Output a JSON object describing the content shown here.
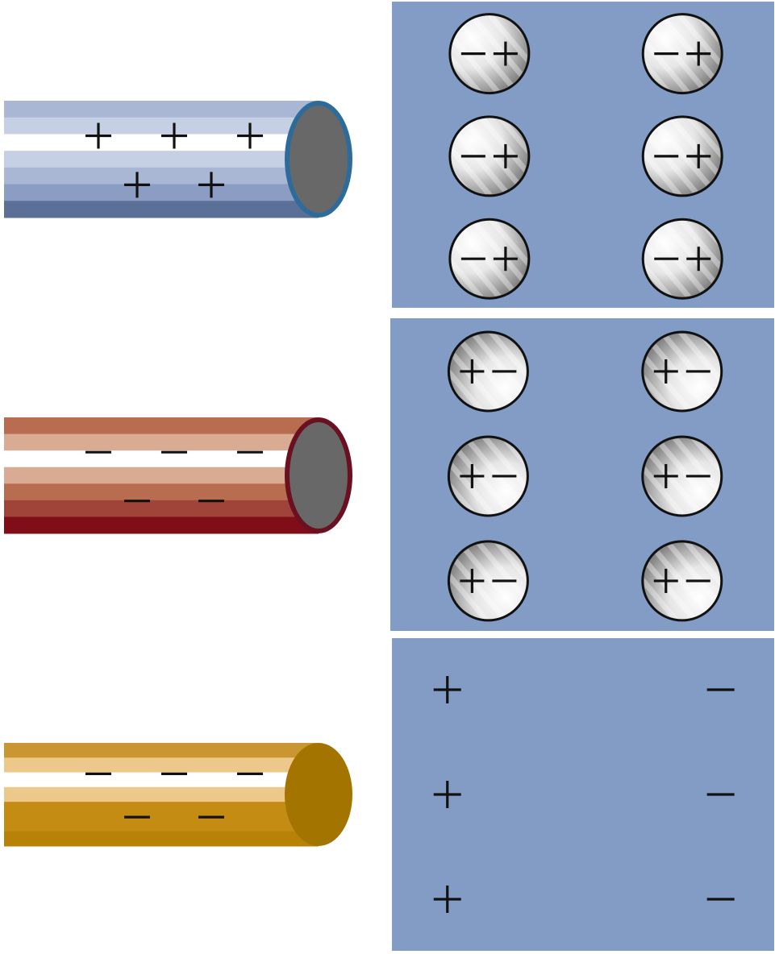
{
  "colors": {
    "background": "#ffffff",
    "panel": "#829cc6",
    "molecule_outline": "#111111",
    "sign": "#111111",
    "end_cap_face": "#686868"
  },
  "rows": [
    {
      "rod": {
        "charge": "positive",
        "charge_sign_count": 5,
        "bands": [
          "#a9b6d4",
          "#c6d0e5",
          "#ffffff",
          "#c6d0e5",
          "#a9b6d4",
          "#8c9dc3",
          "#5b6f97"
        ],
        "cap_rim": "#2d6c9a",
        "cap_face": "#686868"
      },
      "panel": {
        "content": "polarized-molecules",
        "grid": [
          2,
          3
        ],
        "molecule_signs": [
          "minus",
          "plus"
        ],
        "bright_side": "left"
      }
    },
    {
      "rod": {
        "charge": "negative",
        "charge_sign_count": 5,
        "bands": [
          "#b86c50",
          "#d8ab92",
          "#ffffff",
          "#d8ab92",
          "#b86c50",
          "#a0443a",
          "#800e18"
        ],
        "cap_rim": "#6a1020",
        "cap_face": "#686868"
      },
      "panel": {
        "content": "polarized-molecules",
        "grid": [
          2,
          3
        ],
        "molecule_signs": [
          "plus",
          "minus"
        ],
        "bright_side": "right"
      }
    },
    {
      "rod": {
        "charge": "negative",
        "charge_sign_count": 5,
        "bands": [
          "#c99632",
          "#ecc88a",
          "#ffffff",
          "#ecc88a",
          "#c48c12",
          "#c48c12",
          "#b78207"
        ],
        "cap_rim": "#a47400",
        "cap_face": "#a47400"
      },
      "panel": {
        "content": "separated-charges",
        "left_column": [
          "plus",
          "plus",
          "plus"
        ],
        "right_column": [
          "minus",
          "minus",
          "minus"
        ]
      }
    }
  ]
}
